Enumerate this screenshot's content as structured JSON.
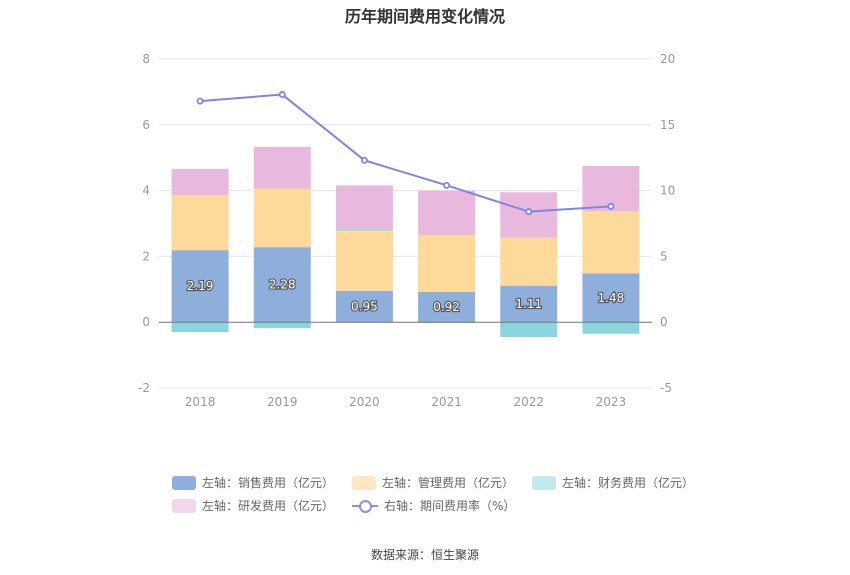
{
  "title": "历年期间费用变化情况",
  "source": "数据来源：恒生聚源",
  "colors": {
    "sales": "#8eaedc",
    "admin": "#fdd99a",
    "finance": "#8bd6dc",
    "rnd": "#e8b9dc",
    "rate": "#7f84ea"
  },
  "legend": [
    {
      "key": "sales",
      "label": "左轴：销售费用（亿元）"
    },
    {
      "key": "admin",
      "label": "左轴：管理费用（亿元）"
    },
    {
      "key": "finance",
      "label": "左轴：财务费用（亿元）"
    },
    {
      "key": "rnd",
      "label": "左轴：研发费用（亿元）"
    },
    {
      "key": "rate",
      "label": "右轴：期间费用率（%）"
    }
  ],
  "chart_data": {
    "type": "bar",
    "stacked": true,
    "categories": [
      "2018",
      "2019",
      "2020",
      "2021",
      "2022",
      "2023"
    ],
    "series": [
      {
        "name": "左轴：销售费用（亿元）",
        "key": "sales",
        "axis": "left",
        "values": [
          2.19,
          2.28,
          0.95,
          0.92,
          1.11,
          1.48
        ],
        "labels": [
          "2.19",
          "2.28",
          "0.95",
          "0.92",
          "1.11",
          "1.48"
        ]
      },
      {
        "name": "左轴：管理费用（亿元）",
        "key": "admin",
        "axis": "left",
        "values": [
          1.67,
          1.78,
          1.83,
          1.73,
          1.46,
          1.89
        ]
      },
      {
        "name": "左轴：财务费用（亿元）",
        "key": "finance",
        "axis": "left",
        "values": [
          -0.3,
          -0.18,
          0.05,
          -0.02,
          -0.45,
          -0.35
        ]
      },
      {
        "name": "左轴：研发费用（亿元）",
        "key": "rnd",
        "axis": "left",
        "values": [
          0.8,
          1.27,
          1.33,
          1.35,
          1.38,
          1.38
        ]
      },
      {
        "name": "右轴：期间费用率（%）",
        "key": "rate",
        "axis": "right",
        "type": "line",
        "values": [
          16.8,
          17.3,
          12.3,
          10.4,
          8.4,
          8.8
        ]
      }
    ],
    "left_axis": {
      "ylim": [
        -2,
        8
      ],
      "ticks": [
        -2,
        0,
        2,
        4,
        6,
        8
      ]
    },
    "right_axis": {
      "ylim": [
        -5,
        20
      ],
      "ticks": [
        -5,
        0,
        5,
        10,
        15,
        20
      ]
    },
    "grid": true,
    "legend_position": "bottom"
  }
}
